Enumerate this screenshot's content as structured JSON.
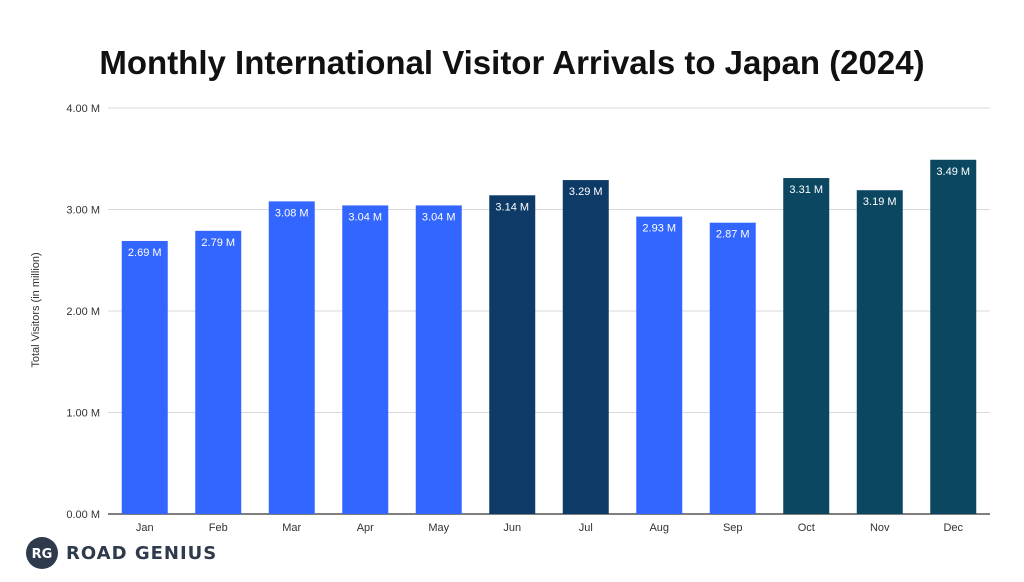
{
  "chart_data": {
    "type": "bar",
    "title": "Monthly International Visitor Arrivals to Japan (2024)",
    "xlabel": "",
    "ylabel": "Total Visitors (in million)",
    "ylim": [
      0,
      4
    ],
    "yticks": [
      0,
      1,
      2,
      3,
      4
    ],
    "ytick_labels": [
      "0.00 M",
      "1.00 M",
      "2.00 M",
      "3.00 M",
      "4.00 M"
    ],
    "categories": [
      "Jan",
      "Feb",
      "Mar",
      "Apr",
      "May",
      "Jun",
      "Jul",
      "Aug",
      "Sep",
      "Oct",
      "Nov",
      "Dec"
    ],
    "values": [
      2.69,
      2.79,
      3.08,
      3.04,
      3.04,
      3.14,
      3.29,
      2.93,
      2.87,
      3.31,
      3.19,
      3.49
    ],
    "data_labels": [
      "2.69 M",
      "2.79 M",
      "3.08 M",
      "3.04 M",
      "3.04 M",
      "3.14 M",
      "3.29 M",
      "2.93 M",
      "2.87 M",
      "3.31 M",
      "3.19 M",
      "3.49 M"
    ],
    "bar_colors": [
      "#3366ff",
      "#3366ff",
      "#3366ff",
      "#3366ff",
      "#3366ff",
      "#0d3a66",
      "#0d3a66",
      "#3366ff",
      "#3366ff",
      "#0b4760",
      "#0b4760",
      "#0b4760"
    ],
    "grid": true,
    "legend": "none"
  },
  "brand": {
    "logo_text": "RG",
    "name": "ROAD GENIUS"
  }
}
